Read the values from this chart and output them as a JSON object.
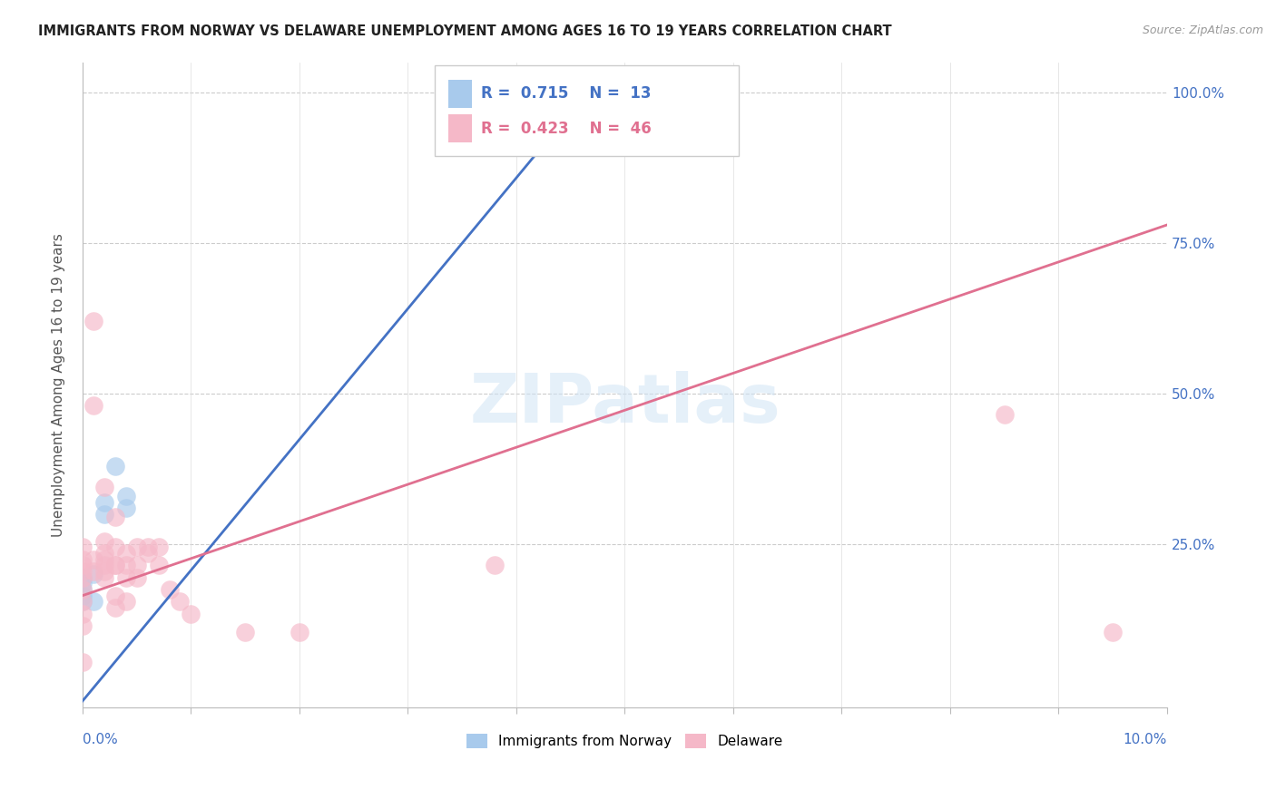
{
  "title": "IMMIGRANTS FROM NORWAY VS DELAWARE UNEMPLOYMENT AMONG AGES 16 TO 19 YEARS CORRELATION CHART",
  "source": "Source: ZipAtlas.com",
  "ylabel": "Unemployment Among Ages 16 to 19 years",
  "xlim": [
    0.0,
    0.1
  ],
  "ylim": [
    -0.02,
    1.05
  ],
  "blue_color": "#A8CAEC",
  "pink_color": "#F5B8C8",
  "blue_line_color": "#4472C4",
  "pink_line_color": "#E07090",
  "watermark": "ZIPatlas",
  "norway_points": [
    [
      0.0,
      0.195
    ],
    [
      0.0,
      0.185
    ],
    [
      0.0,
      0.175
    ],
    [
      0.0,
      0.165
    ],
    [
      0.0,
      0.155
    ],
    [
      0.001,
      0.2
    ],
    [
      0.001,
      0.155
    ],
    [
      0.002,
      0.32
    ],
    [
      0.002,
      0.3
    ],
    [
      0.003,
      0.38
    ],
    [
      0.004,
      0.33
    ],
    [
      0.004,
      0.31
    ],
    [
      0.045,
      0.985
    ],
    [
      0.046,
      0.975
    ]
  ],
  "delaware_points": [
    [
      0.0,
      0.245
    ],
    [
      0.0,
      0.225
    ],
    [
      0.0,
      0.215
    ],
    [
      0.0,
      0.205
    ],
    [
      0.0,
      0.195
    ],
    [
      0.0,
      0.175
    ],
    [
      0.0,
      0.155
    ],
    [
      0.0,
      0.135
    ],
    [
      0.0,
      0.115
    ],
    [
      0.0,
      0.055
    ],
    [
      0.001,
      0.62
    ],
    [
      0.001,
      0.48
    ],
    [
      0.001,
      0.225
    ],
    [
      0.001,
      0.205
    ],
    [
      0.002,
      0.345
    ],
    [
      0.002,
      0.255
    ],
    [
      0.002,
      0.235
    ],
    [
      0.002,
      0.225
    ],
    [
      0.002,
      0.215
    ],
    [
      0.002,
      0.205
    ],
    [
      0.002,
      0.195
    ],
    [
      0.003,
      0.295
    ],
    [
      0.003,
      0.245
    ],
    [
      0.003,
      0.215
    ],
    [
      0.003,
      0.165
    ],
    [
      0.003,
      0.215
    ],
    [
      0.003,
      0.145
    ],
    [
      0.004,
      0.235
    ],
    [
      0.004,
      0.215
    ],
    [
      0.004,
      0.195
    ],
    [
      0.004,
      0.155
    ],
    [
      0.005,
      0.245
    ],
    [
      0.005,
      0.215
    ],
    [
      0.005,
      0.195
    ],
    [
      0.006,
      0.245
    ],
    [
      0.006,
      0.235
    ],
    [
      0.007,
      0.245
    ],
    [
      0.007,
      0.215
    ],
    [
      0.008,
      0.175
    ],
    [
      0.009,
      0.155
    ],
    [
      0.01,
      0.135
    ],
    [
      0.015,
      0.105
    ],
    [
      0.02,
      0.105
    ],
    [
      0.085,
      0.465
    ],
    [
      0.095,
      0.105
    ],
    [
      0.038,
      0.215
    ]
  ],
  "norway_line_x": [
    0.0,
    0.047
  ],
  "norway_line_y": [
    -0.01,
    1.01
  ],
  "delaware_line_x": [
    0.0,
    0.1
  ],
  "delaware_line_y": [
    0.165,
    0.78
  ]
}
